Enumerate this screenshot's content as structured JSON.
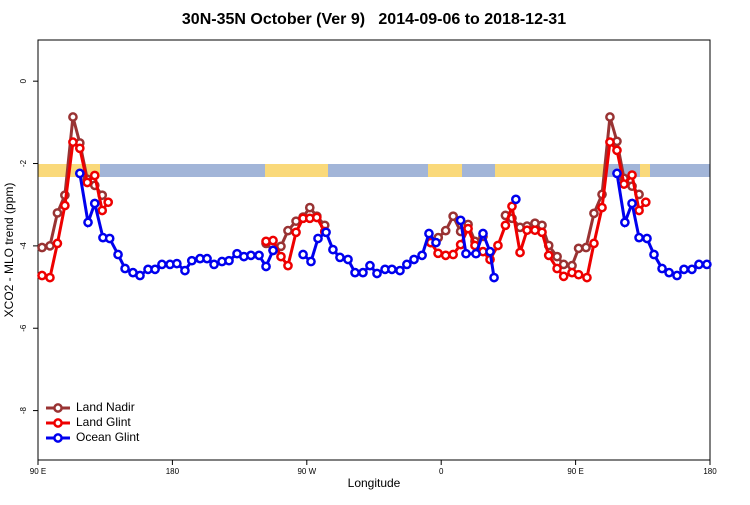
{
  "chart_data": {
    "type": "line",
    "title": "30N-35N October (Ver 9)   2014-09-06 to 2018-12-31",
    "x_label": "Longitude",
    "y_label": "XCO2 - MLO trend (ppm)",
    "xlim": [
      90,
      540
    ],
    "ylim": [
      -9.2,
      1.0
    ],
    "xticks": [
      {
        "value": 90,
        "label": "90 E"
      },
      180,
      {
        "value": 270,
        "label": "90 W"
      },
      {
        "value": 360,
        "label": "0"
      },
      {
        "value": 450,
        "label": "90 E"
      },
      {
        "value": 540,
        "label": "180"
      }
    ],
    "yticks": [
      0,
      -2,
      -4,
      -6,
      -8
    ],
    "legend": "bottom-left",
    "series": [
      {
        "name": "Land Nadir",
        "color": "#993333",
        "x": [
          92.7,
          98,
          103,
          108,
          113.4,
          118,
          123,
          128,
          133,
          190,
          242.7,
          247.4,
          252.7,
          257.4,
          262.8,
          267.5,
          272,
          276.7,
          282,
          320,
          353,
          358,
          363,
          368,
          373,
          378,
          382.6,
          388,
          395,
          403,
          407.4,
          412.8,
          417.5,
          422.8,
          427.5,
          432,
          437.6,
          442,
          447.6,
          452,
          457,
          462.3,
          467.7,
          473,
          477.7,
          482.4,
          487.8,
          492.5
        ],
        "values": [
          -4.04,
          -4.0,
          -3.2,
          -2.77,
          -0.87,
          -1.5,
          -2.38,
          -2.53,
          -2.77,
          null,
          -3.94,
          -4.11,
          -4.01,
          -3.63,
          -3.4,
          -3.3,
          -3.07,
          -3.28,
          -3.5,
          null,
          -3.92,
          -3.8,
          -3.63,
          -3.28,
          -3.65,
          -3.48,
          -3.89,
          -3.77,
          null,
          -3.26,
          -3.33,
          -3.55,
          -3.52,
          -3.45,
          -3.5,
          -3.99,
          -4.26,
          -4.45,
          -4.48,
          -4.06,
          -4.04,
          -3.21,
          -2.75,
          -0.87,
          -1.46,
          -2.36,
          -2.55,
          -2.75
        ]
      },
      {
        "name": "Land Glint",
        "color": "#ee0000",
        "x": [
          92.7,
          98,
          103,
          108,
          113.4,
          118,
          123,
          128,
          133,
          137,
          190,
          242.7,
          247.4,
          252.7,
          257.4,
          262.8,
          267.5,
          272,
          276.7,
          282,
          320,
          353,
          357.9,
          363,
          368,
          373,
          378,
          382.6,
          388,
          392.7,
          398,
          403,
          407.4,
          412.8,
          417.5,
          422.8,
          427.5,
          432,
          437.6,
          442,
          447.6,
          452,
          457.6,
          462.3,
          467.7,
          473,
          477.7,
          482.4,
          487.8,
          492.5,
          497
        ],
        "values": [
          -4.72,
          -4.77,
          -3.94,
          -3.02,
          -1.48,
          -1.63,
          -2.46,
          -2.29,
          -3.14,
          -2.94,
          null,
          -3.89,
          -3.87,
          -4.26,
          -4.48,
          -3.67,
          -3.33,
          -3.33,
          -3.31,
          -3.65,
          null,
          -3.92,
          -4.18,
          -4.23,
          -4.21,
          -3.97,
          -3.58,
          -3.99,
          -4.14,
          -4.33,
          -3.99,
          -3.5,
          -3.04,
          -4.16,
          -3.62,
          -3.62,
          -3.67,
          -4.23,
          -4.55,
          -4.74,
          -4.65,
          -4.7,
          -4.77,
          -3.94,
          -3.07,
          -1.48,
          -1.68,
          -2.5,
          -2.28,
          -3.14,
          -2.94
        ]
      },
      {
        "name": "Ocean Glint",
        "color": "#0000ee",
        "x": [
          118,
          123.5,
          128,
          133.5,
          138,
          143.6,
          148.3,
          153.6,
          158.3,
          163.7,
          168.4,
          173,
          178.4,
          183,
          188.4,
          193,
          198.5,
          203.2,
          207.9,
          213.2,
          217.9,
          223.3,
          227.9,
          232.6,
          238,
          242.7,
          247.4,
          257,
          267.5,
          272.8,
          277.5,
          282.9,
          287.5,
          292.2,
          297.6,
          302.3,
          307.6,
          312.3,
          317,
          322.4,
          327,
          332.4,
          337,
          341.8,
          347.2,
          351.8,
          356.5,
          365,
          373,
          376.6,
          383.3,
          388,
          392.7,
          395.4,
          403,
          410,
          470,
          477.7,
          483,
          487.8,
          492.5,
          497.8,
          502.5,
          507.9,
          512.6,
          517.9,
          522.6,
          527.9,
          532.6,
          537.9
        ],
        "values": [
          -2.24,
          -3.43,
          -2.97,
          -3.8,
          -3.82,
          -4.21,
          -4.55,
          -4.65,
          -4.72,
          -4.57,
          -4.57,
          -4.45,
          -4.45,
          -4.43,
          -4.6,
          -4.36,
          -4.31,
          -4.31,
          -4.45,
          -4.38,
          -4.36,
          -4.19,
          -4.26,
          -4.23,
          -4.23,
          -4.5,
          -4.11,
          null,
          -4.21,
          -4.38,
          -3.82,
          -3.67,
          -4.09,
          -4.28,
          -4.33,
          -4.65,
          -4.65,
          -4.48,
          -4.67,
          -4.57,
          -4.57,
          -4.6,
          -4.45,
          -4.33,
          -4.23,
          -3.7,
          -3.92,
          null,
          -3.38,
          -4.19,
          -4.19,
          -3.7,
          -4.14,
          -4.77,
          null,
          -2.87,
          null,
          -2.24,
          -3.43,
          -2.97,
          -3.8,
          -3.82,
          -4.21,
          -4.55,
          -4.65,
          -4.72,
          -4.57,
          -4.57,
          -4.45,
          -4.45
        ]
      }
    ]
  }
}
